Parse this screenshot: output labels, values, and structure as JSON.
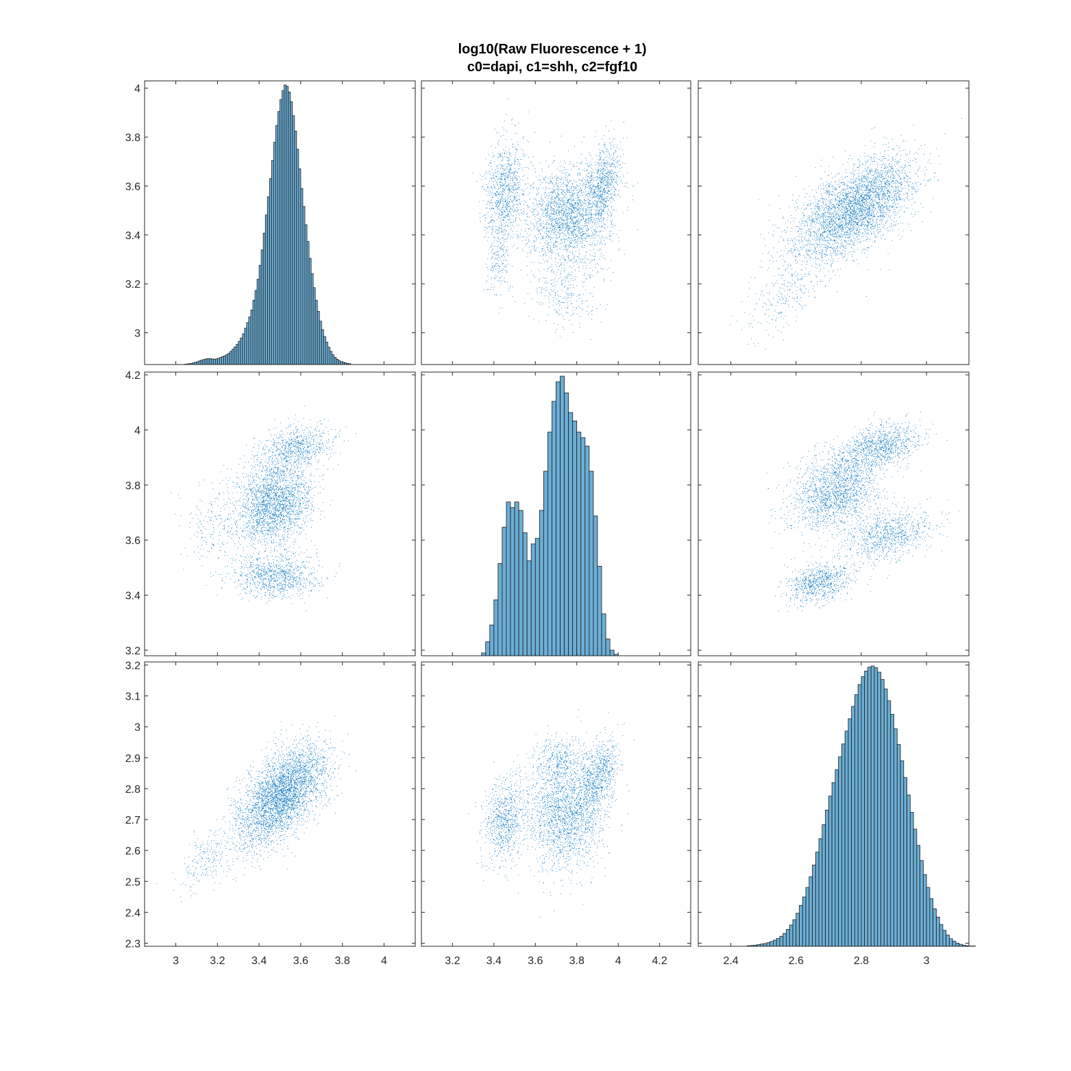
{
  "figure": {
    "title_line1": "log10(Raw Fluorescence + 1)",
    "title_line2": "c0=dapi, c1=shh, c2=fgf10"
  },
  "colors": {
    "scatter_point": "#0072BD",
    "hist_fill": "#6BAED6",
    "hist_edge": "#1a1a1a",
    "axis": "#262626",
    "background": "#ffffff"
  },
  "chart_data": {
    "type": "scatter",
    "grid": false,
    "variables": [
      {
        "name": "c0",
        "range": [
          2.85,
          4.15
        ],
        "ticks": [
          3,
          3.2,
          3.4,
          3.6,
          3.8,
          4
        ],
        "tick_labels": [
          "3",
          "3.2",
          "3.4",
          "3.6",
          "3.8",
          "4"
        ]
      },
      {
        "name": "c1",
        "range": [
          3.05,
          4.35
        ],
        "ticks": [
          3.2,
          3.4,
          3.6,
          3.8,
          4,
          4.2
        ],
        "tick_labels": [
          "3.2",
          "3.4",
          "3.6",
          "3.8",
          "4",
          "4.2"
        ]
      },
      {
        "name": "c2",
        "range": [
          2.3,
          3.13
        ],
        "ticks": [
          2.4,
          2.6,
          2.8,
          3
        ],
        "tick_labels": [
          "2.4",
          "2.6",
          "2.8",
          "3"
        ]
      }
    ],
    "row_axes": [
      {
        "range": [
          2.87,
          4.03
        ],
        "ticks": [
          3,
          3.2,
          3.4,
          3.6,
          3.8,
          4
        ],
        "tick_labels": [
          "3",
          "3.2",
          "3.4",
          "3.6",
          "3.8",
          "4"
        ]
      },
      {
        "range": [
          3.18,
          4.21
        ],
        "ticks": [
          3.2,
          3.4,
          3.6,
          3.8,
          4,
          4.2
        ],
        "tick_labels": [
          "3.2",
          "3.4",
          "3.6",
          "3.8",
          "4",
          "4.2"
        ]
      },
      {
        "range": [
          2.29,
          3.21
        ],
        "ticks": [
          2.3,
          2.4,
          2.5,
          2.6,
          2.7,
          2.8,
          2.9,
          3,
          3.1,
          3.2
        ],
        "tick_labels": [
          "2.3",
          "2.4",
          "2.5",
          "2.6",
          "2.7",
          "2.8",
          "2.9",
          "3",
          "3.1",
          "3.2"
        ]
      }
    ],
    "histograms": [
      {
        "variable": "c0",
        "bin_start": 3.04,
        "bin_width": 0.01,
        "heights": [
          0.001,
          0.002,
          0.003,
          0.004,
          0.006,
          0.008,
          0.01,
          0.013,
          0.016,
          0.018,
          0.02,
          0.021,
          0.021,
          0.02,
          0.019,
          0.02,
          0.022,
          0.025,
          0.028,
          0.031,
          0.035,
          0.04,
          0.047,
          0.055,
          0.063,
          0.072,
          0.083,
          0.095,
          0.11,
          0.13,
          0.15,
          0.17,
          0.195,
          0.23,
          0.265,
          0.305,
          0.355,
          0.41,
          0.47,
          0.535,
          0.6,
          0.665,
          0.73,
          0.795,
          0.855,
          0.905,
          0.948,
          0.98,
          1.0,
          0.995,
          0.975,
          0.94,
          0.89,
          0.835,
          0.77,
          0.7,
          0.63,
          0.565,
          0.5,
          0.44,
          0.38,
          0.325,
          0.275,
          0.23,
          0.19,
          0.155,
          0.125,
          0.1,
          0.08,
          0.062,
          0.047,
          0.035,
          0.026,
          0.019,
          0.014,
          0.01,
          0.008,
          0.006,
          0.004,
          0.003
        ]
      },
      {
        "variable": "c1",
        "bin_start": 3.34,
        "bin_width": 0.02,
        "heights": [
          0.01,
          0.05,
          0.11,
          0.2,
          0.33,
          0.46,
          0.55,
          0.53,
          0.55,
          0.52,
          0.44,
          0.34,
          0.4,
          0.42,
          0.52,
          0.66,
          0.8,
          0.91,
          0.98,
          1.0,
          0.94,
          0.87,
          0.84,
          0.8,
          0.78,
          0.75,
          0.66,
          0.5,
          0.32,
          0.15,
          0.06,
          0.02,
          0.005
        ]
      },
      {
        "variable": "c2",
        "bin_start": 2.45,
        "bin_width": 0.01,
        "heights": [
          0.002,
          0.003,
          0.004,
          0.006,
          0.008,
          0.01,
          0.013,
          0.017,
          0.022,
          0.028,
          0.036,
          0.046,
          0.06,
          0.076,
          0.095,
          0.118,
          0.146,
          0.176,
          0.21,
          0.248,
          0.29,
          0.336,
          0.384,
          0.434,
          0.486,
          0.536,
          0.584,
          0.63,
          0.676,
          0.722,
          0.768,
          0.812,
          0.856,
          0.898,
          0.934,
          0.962,
          0.982,
          0.996,
          1.0,
          0.994,
          0.978,
          0.952,
          0.918,
          0.876,
          0.828,
          0.776,
          0.72,
          0.662,
          0.602,
          0.54,
          0.478,
          0.418,
          0.36,
          0.306,
          0.256,
          0.21,
          0.17,
          0.134,
          0.104,
          0.078,
          0.057,
          0.04,
          0.027,
          0.018,
          0.011,
          0.007,
          0.004,
          0.002,
          0.001,
          0.001
        ]
      }
    ],
    "scatter_panels": [
      {
        "x": "c1",
        "y": "c0",
        "clusters": [
          {
            "n": 2200,
            "mx": 3.76,
            "my": 3.48,
            "sx": 0.1,
            "sy": 0.1,
            "r": 0.1
          },
          {
            "n": 900,
            "mx": 3.45,
            "my": 3.58,
            "sx": 0.05,
            "sy": 0.1,
            "r": 0.2
          },
          {
            "n": 700,
            "mx": 3.93,
            "my": 3.62,
            "sx": 0.04,
            "sy": 0.08,
            "r": 0.3
          },
          {
            "n": 300,
            "mx": 3.74,
            "my": 3.18,
            "sx": 0.08,
            "sy": 0.08,
            "r": 0.0
          },
          {
            "n": 200,
            "mx": 3.42,
            "my": 3.3,
            "sx": 0.03,
            "sy": 0.08,
            "r": 0.0
          }
        ]
      },
      {
        "x": "c2",
        "y": "c0",
        "clusters": [
          {
            "n": 3200,
            "mx": 2.76,
            "my": 3.49,
            "sx": 0.09,
            "sy": 0.1,
            "r": 0.55
          },
          {
            "n": 500,
            "mx": 2.86,
            "my": 3.6,
            "sx": 0.06,
            "sy": 0.08,
            "r": 0.4
          },
          {
            "n": 250,
            "mx": 2.56,
            "my": 3.15,
            "sx": 0.06,
            "sy": 0.08,
            "r": 0.6
          }
        ]
      },
      {
        "x": "c0",
        "y": "c1",
        "clusters": [
          {
            "n": 2400,
            "mx": 3.47,
            "my": 3.74,
            "sx": 0.09,
            "sy": 0.08,
            "r": 0.2
          },
          {
            "n": 700,
            "mx": 3.58,
            "my": 3.94,
            "sx": 0.09,
            "sy": 0.04,
            "r": 0.3
          },
          {
            "n": 1000,
            "mx": 3.48,
            "my": 3.47,
            "sx": 0.1,
            "sy": 0.04,
            "r": 0.0
          },
          {
            "n": 200,
            "mx": 3.18,
            "my": 3.65,
            "sx": 0.07,
            "sy": 0.08,
            "r": 0.0
          }
        ]
      },
      {
        "x": "c2",
        "y": "c1",
        "clusters": [
          {
            "n": 1800,
            "mx": 2.72,
            "my": 3.78,
            "sx": 0.07,
            "sy": 0.07,
            "r": 0.3
          },
          {
            "n": 1000,
            "mx": 2.86,
            "my": 3.94,
            "sx": 0.06,
            "sy": 0.04,
            "r": 0.4
          },
          {
            "n": 900,
            "mx": 2.88,
            "my": 3.62,
            "sx": 0.07,
            "sy": 0.05,
            "r": 0.3
          },
          {
            "n": 800,
            "mx": 2.67,
            "my": 3.45,
            "sx": 0.05,
            "sy": 0.04,
            "r": 0.3
          }
        ]
      },
      {
        "x": "c0",
        "y": "c2",
        "clusters": [
          {
            "n": 3300,
            "mx": 3.49,
            "my": 2.77,
            "sx": 0.1,
            "sy": 0.08,
            "r": 0.55
          },
          {
            "n": 500,
            "mx": 3.62,
            "my": 2.84,
            "sx": 0.08,
            "sy": 0.06,
            "r": 0.3
          },
          {
            "n": 200,
            "mx": 3.14,
            "my": 2.57,
            "sx": 0.06,
            "sy": 0.05,
            "r": 0.5
          }
        ]
      },
      {
        "x": "c1",
        "y": "c2",
        "clusters": [
          {
            "n": 2000,
            "mx": 3.74,
            "my": 2.72,
            "sx": 0.09,
            "sy": 0.09,
            "r": 0.0
          },
          {
            "n": 800,
            "mx": 3.45,
            "my": 2.7,
            "sx": 0.05,
            "sy": 0.07,
            "r": 0.2
          },
          {
            "n": 800,
            "mx": 3.9,
            "my": 2.84,
            "sx": 0.05,
            "sy": 0.06,
            "r": 0.4
          },
          {
            "n": 300,
            "mx": 3.7,
            "my": 2.9,
            "sx": 0.06,
            "sy": 0.04,
            "r": 0.0
          }
        ]
      }
    ]
  }
}
